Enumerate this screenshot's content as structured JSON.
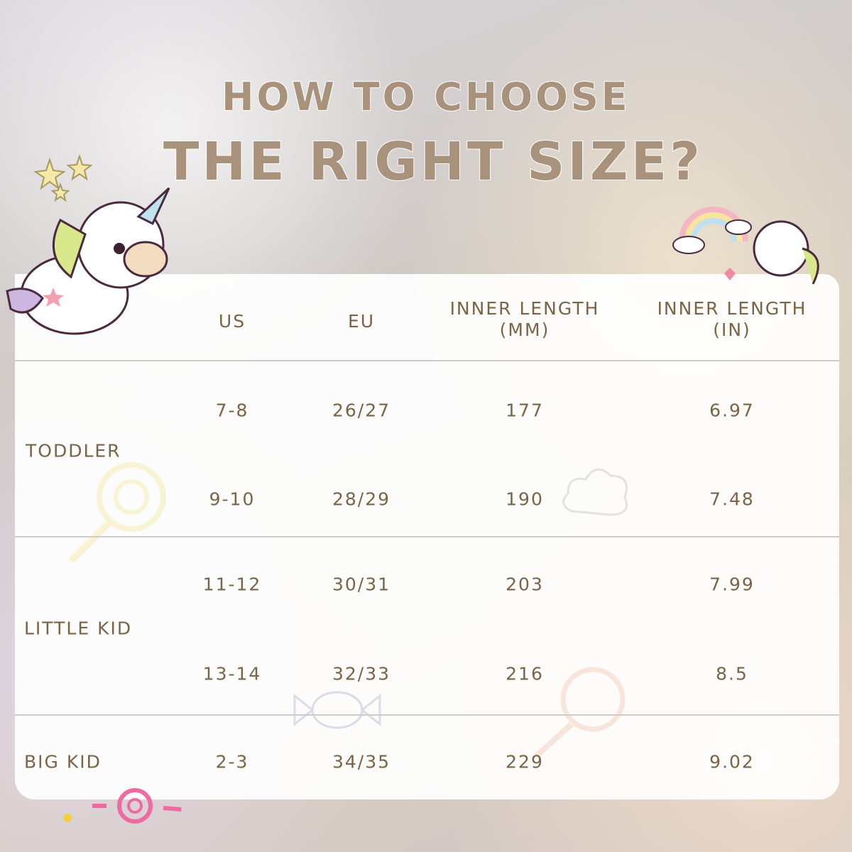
{
  "title": {
    "line1": "HOW TO CHOOSE",
    "line2": "THE RIGHT SIZE?"
  },
  "table": {
    "headers": [
      "US",
      "EU",
      "INNER LENGTH (MM)",
      "INNER LENGTH (IN)"
    ],
    "header_lines": {
      "mm": [
        "INNER LENGTH",
        "(MM)"
      ],
      "in": [
        "INNER LENGTH",
        "(IN)"
      ]
    },
    "groups": [
      {
        "label": "TODDLER",
        "rows": [
          [
            "7-8",
            "26/27",
            "177",
            "6.97"
          ],
          [
            "9-10",
            "28/29",
            "190",
            "7.48"
          ]
        ]
      },
      {
        "label": "LITTLE KID",
        "rows": [
          [
            "11-12",
            "30/31",
            "203",
            "7.99"
          ],
          [
            "13-14",
            "32/33",
            "216",
            "8.5"
          ]
        ]
      },
      {
        "label": "BIG KID",
        "rows": [
          [
            "2-3",
            "34/35",
            "229",
            "9.02"
          ]
        ]
      }
    ]
  },
  "colors": {
    "text": "#7a6445",
    "title": "#a8927c",
    "divider": "#cfcbc8"
  },
  "icons": [
    "unicorn-icon",
    "rainbow-unicorn-icon",
    "star-icon",
    "lollipop-icon",
    "candy-icon",
    "cloud-icon"
  ]
}
